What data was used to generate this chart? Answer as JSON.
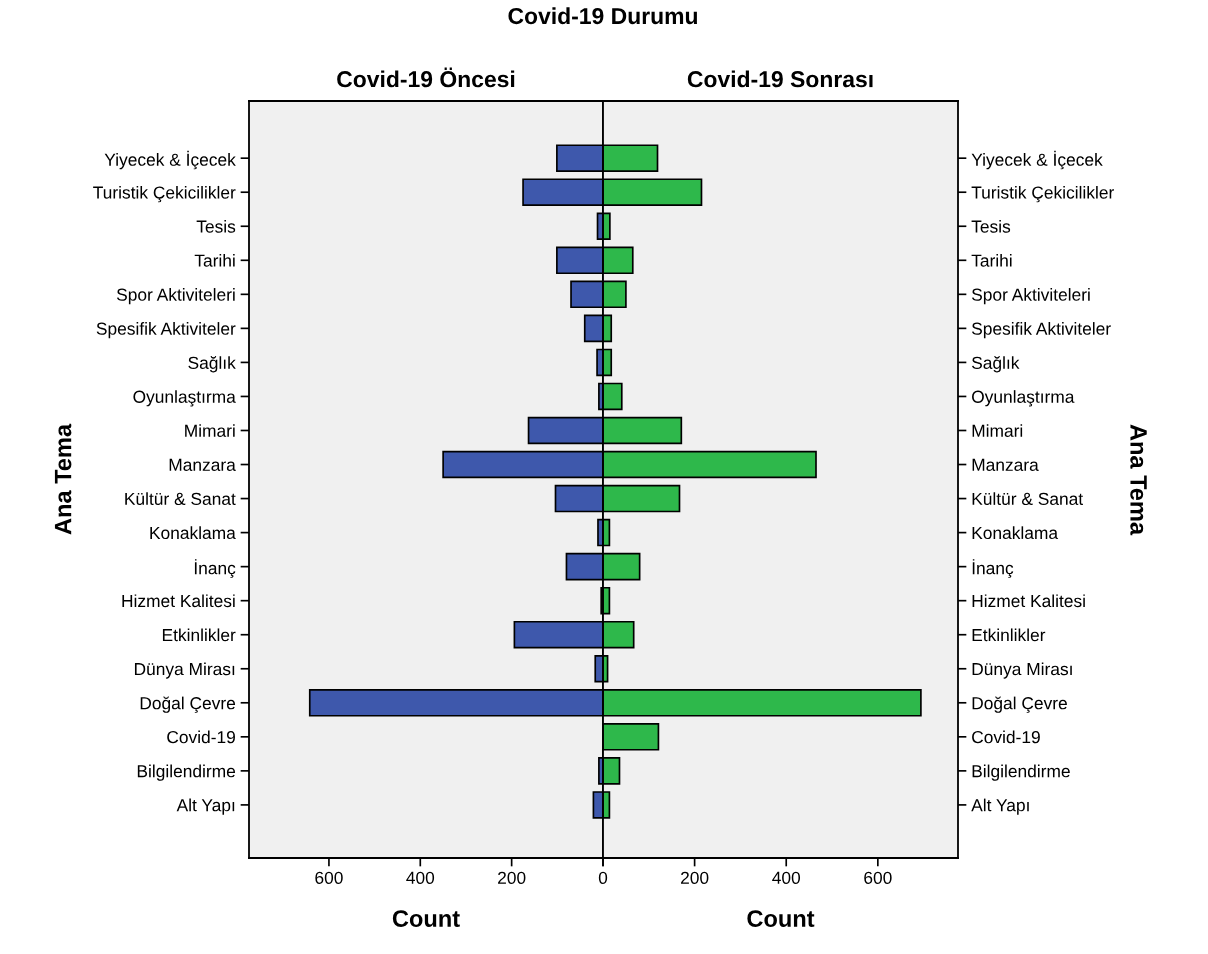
{
  "chart_data": [
    {
      "type": "bar",
      "orientation": "horizontal",
      "title": "Covid-19 Öncesi",
      "xlabel": "Count",
      "ylabel": "Ana Tema",
      "annotations": [
        "Covid-19 Durumu"
      ],
      "categories": [
        "Yiyecek & İçecek",
        "Turistik Çekicilikler",
        "Tesis",
        "Tarihi",
        "Spor Aktiviteleri",
        "Spesifik Aktiviteler",
        "Sağlık",
        "Oyunlaştırma",
        "Mimari",
        "Manzara",
        "Kültür & Sanat",
        "Konaklama",
        "İnanç",
        "Hizmet Kalitesi",
        "Etkinlikler",
        "Dünya Mirası",
        "Doğal Çevre",
        "Covid-19",
        "Bilgilendirme",
        "Alt Yapı"
      ],
      "series": [
        {
          "color": "#3e58ac",
          "values": [
            101,
            175,
            12,
            101,
            70,
            40,
            13,
            9,
            163,
            350,
            104,
            11,
            80,
            4,
            194,
            17,
            642,
            null,
            9,
            21
          ]
        }
      ],
      "xlim": [
        775,
        0
      ],
      "xticks": [
        {
          "value": 0,
          "label": null
        },
        200,
        400,
        600
      ],
      "grid": false
    },
    {
      "type": "bar",
      "orientation": "horizontal",
      "title": "Covid-19 Sonrası",
      "xlabel": "Count",
      "ylabel": "Ana Tema",
      "categories": [
        "Yiyecek & İçecek",
        "Turistik Çekicilikler",
        "Tesis",
        "Tarihi",
        "Spor Aktiviteleri",
        "Spesifik Aktiviteler",
        "Sağlık",
        "Oyunlaştırma",
        "Mimari",
        "Manzara",
        "Kültür & Sanat",
        "Konaklama",
        "İnanç",
        "Hizmet Kalitesi",
        "Etkinlikler",
        "Dünya Mirası",
        "Doğal Çevre",
        "Covid-19",
        "Bilgilendirme",
        "Alt Yapı"
      ],
      "series": [
        {
          "color": "#2eb84b",
          "values": [
            119,
            215,
            15,
            65,
            50,
            18,
            18,
            41,
            171,
            465,
            167,
            14,
            80,
            14,
            67,
            10,
            694,
            121,
            36,
            14
          ]
        }
      ],
      "xlim": [
        0,
        775
      ],
      "xticks": [
        0,
        200,
        400,
        600
      ],
      "grid": false
    }
  ]
}
